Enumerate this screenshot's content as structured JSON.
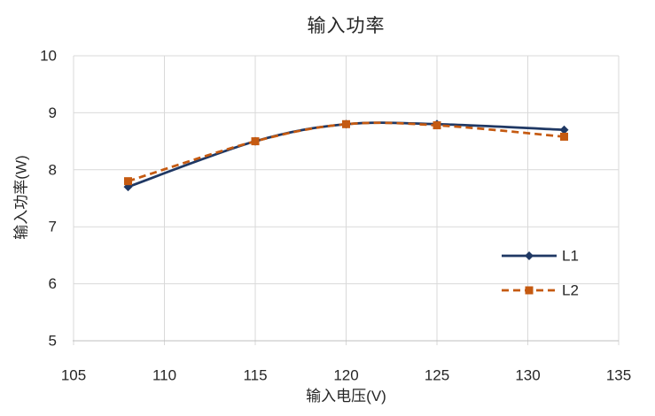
{
  "chart_data": {
    "type": "line",
    "title": "输入功率",
    "xlabel": "输入电压(V)",
    "ylabel": "输入功率(W)",
    "x": [
      108,
      115,
      120,
      125,
      132
    ],
    "series": [
      {
        "name": "L1",
        "values": [
          7.7,
          8.5,
          8.8,
          8.8,
          8.7
        ],
        "color": "#1F3864",
        "line_style": "solid",
        "marker": "diamond"
      },
      {
        "name": "L2",
        "values": [
          7.8,
          8.5,
          8.8,
          8.78,
          8.58
        ],
        "color": "#C55A11",
        "line_style": "dashed",
        "marker": "square"
      }
    ],
    "xlim": [
      105,
      135
    ],
    "ylim": [
      5,
      10
    ],
    "x_ticks": [
      105,
      110,
      115,
      120,
      125,
      130,
      135
    ],
    "y_ticks": [
      5,
      6,
      7,
      8,
      9,
      10
    ],
    "grid": true,
    "smooth_lines": true,
    "legend_position": "inside-right-middle",
    "legend_entries": [
      "L1",
      "L2"
    ],
    "colors": {
      "gridline": "#D9D9D9",
      "axis_line": "#BFBFBF",
      "text": "#262626"
    }
  }
}
